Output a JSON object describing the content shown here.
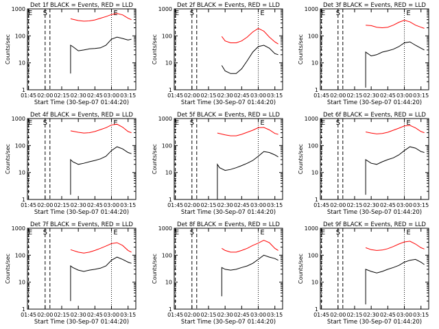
{
  "chart_data": [
    {
      "type": "line",
      "title": "Det 1f BLACK = Events, RED = LLD",
      "xlabel": "Start Time (30-Sep-07 01:44:20)",
      "ylabel": "Counts/sec",
      "xticks": [
        "01:45",
        "02:00",
        "02:15",
        "02:30",
        "02:45",
        "03:00",
        "03:15"
      ],
      "yticks": [
        "1",
        "10",
        "100",
        "1000"
      ],
      "ylog": true,
      "ylim": [
        1,
        1000
      ],
      "xlim": [
        "01:44",
        "03:22"
      ],
      "marker_labels": [
        "E",
        "S",
        "E"
      ],
      "marker_times": [
        "01:45",
        "02:00",
        "03:00"
      ],
      "series": [
        {
          "name": "Events",
          "color": "#000000",
          "x": [
            "02:23",
            "02:23",
            "02:25",
            "02:30",
            "02:35",
            "02:40",
            "02:45",
            "02:50",
            "02:55",
            "03:00",
            "03:05",
            "03:10",
            "03:15",
            "03:18"
          ],
          "y": [
            4,
            45,
            40,
            28,
            30,
            33,
            34,
            36,
            45,
            75,
            90,
            80,
            70,
            75
          ]
        },
        {
          "name": "LLD",
          "color": "#ff0000",
          "x": [
            "02:23",
            "02:30",
            "02:35",
            "02:40",
            "02:45",
            "02:50",
            "02:55",
            "03:00",
            "03:05",
            "03:10",
            "03:15",
            "03:18"
          ],
          "y": [
            430,
            370,
            350,
            360,
            390,
            450,
            520,
            620,
            680,
            600,
            450,
            400
          ]
        }
      ]
    },
    {
      "type": "line",
      "title": "Det 2f BLACK = Events, RED = LLD",
      "xlabel": "Start Time (30-Sep-07 01:44:20)",
      "ylabel": "Counts/sec",
      "xticks": [
        "01:45",
        "02:00",
        "02:15",
        "02:30",
        "02:45",
        "03:00",
        "03:15"
      ],
      "yticks": [
        "1",
        "10",
        "100",
        "1000"
      ],
      "ylog": true,
      "ylim": [
        1,
        1000
      ],
      "xlim": [
        "01:44",
        "03:22"
      ],
      "marker_labels": [
        "E",
        "S",
        "E"
      ],
      "marker_times": [
        "01:45",
        "02:00",
        "03:00"
      ],
      "series": [
        {
          "name": "Events",
          "color": "#000000",
          "x": [
            "02:27",
            "02:30",
            "02:35",
            "02:40",
            "02:45",
            "02:50",
            "02:55",
            "03:00",
            "03:05",
            "03:10",
            "03:15",
            "03:18"
          ],
          "y": [
            8,
            5,
            4,
            4,
            6,
            12,
            25,
            40,
            45,
            35,
            22,
            20
          ]
        },
        {
          "name": "LLD",
          "color": "#ff0000",
          "x": [
            "02:27",
            "02:30",
            "02:35",
            "02:40",
            "02:45",
            "02:50",
            "02:55",
            "03:00",
            "03:05",
            "03:10",
            "03:15",
            "03:18"
          ],
          "y": [
            95,
            65,
            55,
            55,
            65,
            90,
            140,
            190,
            150,
            90,
            60,
            50
          ]
        }
      ]
    },
    {
      "type": "line",
      "title": "Det 3f BLACK = Events, RED = LLD",
      "xlabel": "Start Time (30-Sep-07 01:44:20)",
      "ylabel": "Counts/sec",
      "xticks": [
        "01:45",
        "02:00",
        "02:15",
        "02:30",
        "02:45",
        "03:00",
        "03:15"
      ],
      "yticks": [
        "1",
        "10",
        "100",
        "1000"
      ],
      "ylog": true,
      "ylim": [
        1,
        1000
      ],
      "xlim": [
        "01:44",
        "03:22"
      ],
      "marker_labels": [
        "E",
        "S",
        "E"
      ],
      "marker_times": [
        "01:45",
        "02:00",
        "03:00"
      ],
      "series": [
        {
          "name": "Events",
          "color": "#000000",
          "x": [
            "02:25",
            "02:25",
            "02:30",
            "02:35",
            "02:40",
            "02:45",
            "02:50",
            "02:55",
            "03:00",
            "03:05",
            "03:10",
            "03:15",
            "03:18"
          ],
          "y": [
            1.2,
            25,
            18,
            20,
            25,
            28,
            32,
            40,
            55,
            60,
            45,
            35,
            30
          ]
        },
        {
          "name": "LLD",
          "color": "#ff0000",
          "x": [
            "02:25",
            "02:30",
            "02:35",
            "02:40",
            "02:45",
            "02:50",
            "02:55",
            "03:00",
            "03:05",
            "03:10",
            "03:15",
            "03:18"
          ],
          "y": [
            250,
            240,
            210,
            200,
            210,
            250,
            320,
            380,
            330,
            250,
            210,
            190
          ]
        }
      ]
    },
    {
      "type": "line",
      "title": "Det 4f BLACK = Events, RED = LLD",
      "xlabel": "Start Time (30-Sep-07 01:44:20)",
      "ylabel": "Counts/sec",
      "xticks": [
        "01:45",
        "02:00",
        "02:15",
        "02:30",
        "02:45",
        "03:00",
        "03:15"
      ],
      "yticks": [
        "1",
        "10",
        "100",
        "1000"
      ],
      "ylog": true,
      "ylim": [
        1,
        1000
      ],
      "xlim": [
        "01:44",
        "03:22"
      ],
      "marker_labels": [
        "E",
        "S",
        "E"
      ],
      "marker_times": [
        "01:45",
        "02:00",
        "03:00"
      ],
      "series": [
        {
          "name": "Events",
          "color": "#000000",
          "x": [
            "02:23",
            "02:23",
            "02:25",
            "02:30",
            "02:35",
            "02:40",
            "02:45",
            "02:50",
            "02:55",
            "03:00",
            "03:05",
            "03:10",
            "03:15",
            "03:18"
          ],
          "y": [
            1.5,
            30,
            25,
            20,
            22,
            25,
            28,
            32,
            40,
            65,
            90,
            75,
            55,
            50
          ]
        },
        {
          "name": "LLD",
          "color": "#ff0000",
          "x": [
            "02:23",
            "02:30",
            "02:35",
            "02:40",
            "02:45",
            "02:50",
            "02:55",
            "03:00",
            "03:05",
            "03:10",
            "03:15",
            "03:18"
          ],
          "y": [
            350,
            310,
            290,
            300,
            330,
            390,
            460,
            580,
            620,
            480,
            330,
            300
          ]
        }
      ]
    },
    {
      "type": "line",
      "title": "Det 5f BLACK = Events, RED = LLD",
      "xlabel": "Start Time (30-Sep-07 01:44:20)",
      "ylabel": "Counts/sec",
      "xticks": [
        "01:45",
        "02:00",
        "02:15",
        "02:30",
        "02:45",
        "03:00",
        "03:15"
      ],
      "yticks": [
        "1",
        "10",
        "100",
        "1000"
      ],
      "ylog": true,
      "ylim": [
        1,
        1000
      ],
      "xlim": [
        "01:44",
        "03:22"
      ],
      "marker_labels": [
        "E",
        "S",
        "E"
      ],
      "marker_times": [
        "01:45",
        "02:00",
        "03:00"
      ],
      "series": [
        {
          "name": "Events",
          "color": "#000000",
          "x": [
            "02:23",
            "02:23",
            "02:25",
            "02:30",
            "02:35",
            "02:40",
            "02:45",
            "02:50",
            "02:55",
            "03:00",
            "03:05",
            "03:10",
            "03:15",
            "03:18"
          ],
          "y": [
            1,
            20,
            15,
            12,
            13,
            15,
            18,
            22,
            28,
            40,
            60,
            55,
            45,
            38
          ]
        },
        {
          "name": "LLD",
          "color": "#ff0000",
          "x": [
            "02:23",
            "02:30",
            "02:35",
            "02:40",
            "02:45",
            "02:50",
            "02:55",
            "03:00",
            "03:05",
            "03:10",
            "03:15",
            "03:18"
          ],
          "y": [
            290,
            250,
            230,
            230,
            260,
            310,
            370,
            460,
            470,
            380,
            280,
            260
          ]
        }
      ]
    },
    {
      "type": "line",
      "title": "Det 6f BLACK = Events, RED = LLD",
      "xlabel": "Start Time (30-Sep-07 01:44:20)",
      "ylabel": "Counts/sec",
      "xticks": [
        "01:45",
        "02:00",
        "02:15",
        "02:30",
        "02:45",
        "03:00",
        "03:15"
      ],
      "yticks": [
        "1",
        "10",
        "100",
        "1000"
      ],
      "ylog": true,
      "ylim": [
        1,
        1000
      ],
      "xlim": [
        "01:44",
        "03:22"
      ],
      "marker_labels": [
        "E",
        "S",
        "E"
      ],
      "marker_times": [
        "01:45",
        "02:00",
        "03:00"
      ],
      "series": [
        {
          "name": "Events",
          "color": "#000000",
          "x": [
            "02:25",
            "02:25",
            "02:30",
            "02:35",
            "02:40",
            "02:45",
            "02:50",
            "02:55",
            "03:00",
            "03:05",
            "03:10",
            "03:15",
            "03:18"
          ],
          "y": [
            1.5,
            30,
            22,
            20,
            25,
            30,
            35,
            45,
            65,
            90,
            80,
            60,
            55
          ]
        },
        {
          "name": "LLD",
          "color": "#ff0000",
          "x": [
            "02:25",
            "02:30",
            "02:35",
            "02:40",
            "02:45",
            "02:50",
            "02:55",
            "03:00",
            "03:05",
            "03:10",
            "03:15",
            "03:18"
          ],
          "y": [
            320,
            290,
            270,
            280,
            310,
            370,
            440,
            530,
            560,
            450,
            330,
            300
          ]
        }
      ]
    },
    {
      "type": "line",
      "title": "Det 7f BLACK = Events, RED = LLD",
      "xlabel": "Start Time (30-Sep-07 01:44:20)",
      "ylabel": "Counts/sec",
      "xticks": [
        "01:45",
        "02:00",
        "02:15",
        "02:30",
        "02:45",
        "03:00",
        "03:15"
      ],
      "yticks": [
        "1",
        "10",
        "100",
        "1000"
      ],
      "ylog": true,
      "ylim": [
        1,
        1000
      ],
      "xlim": [
        "01:44",
        "03:22"
      ],
      "marker_labels": [
        "E",
        "S",
        "E"
      ],
      "marker_times": [
        "01:45",
        "02:00",
        "03:00"
      ],
      "series": [
        {
          "name": "Events",
          "color": "#000000",
          "x": [
            "02:23",
            "02:23",
            "02:25",
            "02:30",
            "02:35",
            "02:40",
            "02:45",
            "02:50",
            "02:55",
            "03:00",
            "03:05",
            "03:10",
            "03:15",
            "03:18"
          ],
          "y": [
            2,
            40,
            35,
            28,
            25,
            28,
            30,
            33,
            40,
            65,
            85,
            70,
            55,
            50
          ]
        },
        {
          "name": "LLD",
          "color": "#ff0000",
          "x": [
            "02:23",
            "02:30",
            "02:35",
            "02:40",
            "02:45",
            "02:50",
            "02:55",
            "03:00",
            "03:05",
            "03:10",
            "03:15",
            "03:18"
          ],
          "y": [
            160,
            130,
            120,
            130,
            150,
            180,
            220,
            270,
            290,
            230,
            150,
            130
          ]
        }
      ]
    },
    {
      "type": "line",
      "title": "Det 8f BLACK = Events, RED = LLD",
      "xlabel": "Start Time (30-Sep-07 01:44:20)",
      "ylabel": "Counts/sec",
      "xticks": [
        "01:45",
        "02:00",
        "02:15",
        "02:30",
        "02:45",
        "03:00",
        "03:15"
      ],
      "yticks": [
        "1",
        "10",
        "100",
        "1000"
      ],
      "ylog": true,
      "ylim": [
        1,
        1000
      ],
      "xlim": [
        "01:44",
        "03:22"
      ],
      "marker_labels": [
        "E",
        "S",
        "E"
      ],
      "marker_times": [
        "01:45",
        "02:00",
        "03:00"
      ],
      "series": [
        {
          "name": "Events",
          "color": "#000000",
          "x": [
            "02:27",
            "02:27",
            "02:30",
            "02:35",
            "02:40",
            "02:45",
            "02:50",
            "02:55",
            "03:00",
            "03:05",
            "03:10",
            "03:15",
            "03:18"
          ],
          "y": [
            3,
            35,
            30,
            28,
            30,
            35,
            40,
            50,
            70,
            100,
            85,
            75,
            65
          ]
        },
        {
          "name": "LLD",
          "color": "#ff0000",
          "x": [
            "02:27",
            "02:30",
            "02:35",
            "02:40",
            "02:45",
            "02:50",
            "02:55",
            "03:00",
            "03:05",
            "03:10",
            "03:15",
            "03:18"
          ],
          "y": [
            180,
            150,
            130,
            130,
            150,
            180,
            230,
            280,
            360,
            290,
            180,
            150
          ]
        }
      ]
    },
    {
      "type": "line",
      "title": "Det 9f BLACK = Events, RED = LLD",
      "xlabel": "Start Time (30-Sep-07 01:44:20)",
      "ylabel": "Counts/sec",
      "xticks": [
        "01:45",
        "02:00",
        "02:15",
        "02:30",
        "02:45",
        "03:00",
        "03:15"
      ],
      "yticks": [
        "1",
        "10",
        "100",
        "1000"
      ],
      "ylog": true,
      "ylim": [
        1,
        1000
      ],
      "xlim": [
        "01:44",
        "03:22"
      ],
      "marker_labels": [
        "E",
        "S",
        "E"
      ],
      "marker_times": [
        "01:45",
        "02:00",
        "03:00"
      ],
      "series": [
        {
          "name": "Events",
          "color": "#000000",
          "x": [
            "02:25",
            "02:25",
            "02:30",
            "02:35",
            "02:40",
            "02:45",
            "02:50",
            "02:55",
            "03:00",
            "03:05",
            "03:10",
            "03:15",
            "03:18"
          ],
          "y": [
            1.5,
            30,
            25,
            22,
            25,
            30,
            35,
            42,
            55,
            65,
            70,
            55,
            45
          ]
        },
        {
          "name": "LLD",
          "color": "#ff0000",
          "x": [
            "02:25",
            "02:30",
            "02:35",
            "02:40",
            "02:45",
            "02:50",
            "02:55",
            "03:00",
            "03:05",
            "03:10",
            "03:15",
            "03:18"
          ],
          "y": [
            190,
            160,
            150,
            155,
            175,
            210,
            260,
            310,
            330,
            260,
            190,
            170
          ]
        }
      ]
    }
  ]
}
